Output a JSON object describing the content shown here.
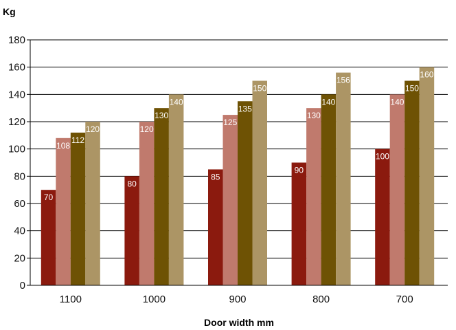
{
  "chart_data": {
    "type": "bar",
    "ylabel": "Kg",
    "xlabel": "Door width mm",
    "categories": [
      "1100",
      "1000",
      "900",
      "800",
      "700"
    ],
    "series": [
      {
        "values": [
          70,
          80,
          85,
          90,
          100
        ],
        "color": "#8b1a0e"
      },
      {
        "values": [
          108,
          120,
          125,
          130,
          140
        ],
        "color": "#c07a6d"
      },
      {
        "values": [
          112,
          130,
          135,
          140,
          150
        ],
        "color": "#6e5204"
      },
      {
        "values": [
          120,
          140,
          150,
          156,
          160
        ],
        "color": "#ac9565"
      }
    ],
    "ylim": [
      0,
      180
    ],
    "yticks": [
      "0",
      "20",
      "40",
      "60",
      "80",
      "100",
      "120",
      "140",
      "160",
      "180"
    ],
    "grid": true,
    "legend": "none"
  }
}
